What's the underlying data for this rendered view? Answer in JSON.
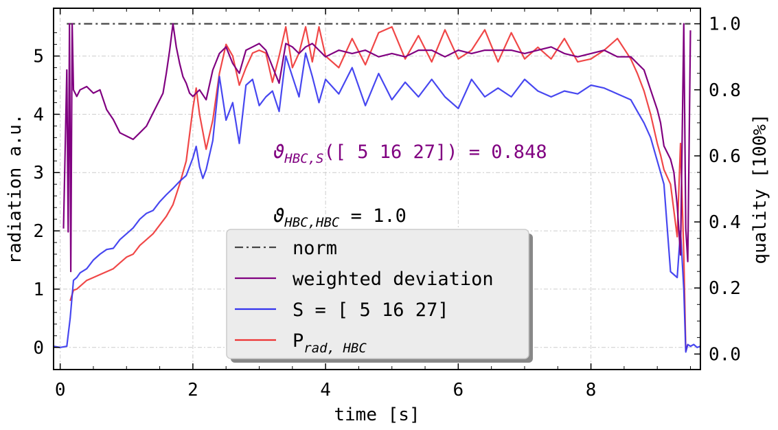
{
  "chart_data": {
    "type": "line",
    "xlabel": "time [s]",
    "ylabel": "radiation a.u.",
    "y2label": "quality [100%]",
    "xlim": [
      -0.1,
      9.65
    ],
    "ylim": [
      -0.38,
      5.82
    ],
    "y2lim": [
      -0.047,
      1.047
    ],
    "xticks": [
      "0",
      "2",
      "4",
      "6",
      "8"
    ],
    "yticks": [
      "0",
      "1",
      "2",
      "3",
      "4",
      "5"
    ],
    "y2ticks": [
      "0.0",
      "0.2",
      "0.4",
      "0.6",
      "0.8",
      "1.0"
    ],
    "grid": true,
    "legend_position": "bottom-center",
    "annotations": {
      "weighted": {
        "symbol": "ϑ",
        "sub": "HBC,S",
        "text": "([ 5 16 27]) = 0.848",
        "color": "#800080"
      },
      "norm": {
        "symbol": "ϑ",
        "sub": "HBC,HBC",
        "text": " = 1.0",
        "color": "#000000"
      }
    },
    "series": [
      {
        "name": "norm",
        "label_base": "norm",
        "label_sub": "",
        "color": "#444444",
        "dash": "12 5 3 5",
        "axis": "right",
        "x": [
          0.1,
          9.5
        ],
        "y": [
          1.0,
          1.0
        ]
      },
      {
        "name": "weighted deviation",
        "label_base": "weighted deviation",
        "label_sub": "",
        "color": "#800080",
        "axis": "right",
        "x": [
          0.05,
          0.1,
          0.12,
          0.14,
          0.16,
          0.18,
          0.2,
          0.25,
          0.3,
          0.4,
          0.5,
          0.6,
          0.7,
          0.8,
          0.9,
          1.0,
          1.1,
          1.2,
          1.3,
          1.4,
          1.5,
          1.55,
          1.6,
          1.65,
          1.7,
          1.75,
          1.8,
          1.85,
          1.9,
          1.95,
          2.0,
          2.1,
          2.2,
          2.3,
          2.4,
          2.5,
          2.6,
          2.7,
          2.8,
          2.9,
          3.0,
          3.1,
          3.2,
          3.3,
          3.4,
          3.5,
          3.6,
          3.7,
          3.8,
          3.9,
          4.0,
          4.2,
          4.4,
          4.6,
          4.8,
          5.0,
          5.2,
          5.4,
          5.6,
          5.8,
          6.0,
          6.2,
          6.4,
          6.6,
          6.8,
          7.0,
          7.2,
          7.4,
          7.6,
          7.8,
          8.0,
          8.2,
          8.4,
          8.6,
          8.7,
          8.8,
          8.9,
          9.0,
          9.05,
          9.1,
          9.15,
          9.2,
          9.25,
          9.3,
          9.35,
          9.4,
          9.43,
          9.46,
          9.5
        ],
        "y": [
          0.38,
          0.86,
          0.37,
          1.0,
          0.25,
          1.0,
          0.8,
          0.78,
          0.8,
          0.81,
          0.79,
          0.8,
          0.74,
          0.71,
          0.67,
          0.66,
          0.65,
          0.67,
          0.69,
          0.73,
          0.77,
          0.79,
          0.85,
          0.92,
          1.0,
          0.93,
          0.88,
          0.84,
          0.82,
          0.79,
          0.78,
          0.8,
          0.77,
          0.86,
          0.91,
          0.93,
          0.88,
          0.85,
          0.92,
          0.93,
          0.94,
          0.92,
          0.87,
          0.82,
          0.94,
          0.93,
          0.91,
          0.93,
          0.94,
          0.92,
          0.9,
          0.92,
          0.91,
          0.92,
          0.9,
          0.91,
          0.9,
          0.92,
          0.92,
          0.9,
          0.92,
          0.91,
          0.92,
          0.92,
          0.92,
          0.91,
          0.92,
          0.93,
          0.91,
          0.9,
          0.91,
          0.92,
          0.9,
          0.9,
          0.88,
          0.86,
          0.8,
          0.74,
          0.7,
          0.63,
          0.61,
          0.59,
          0.55,
          0.45,
          0.3,
          1.0,
          0.38,
          0.28,
          0.98
        ]
      },
      {
        "name": "S = [ 5 16 27]",
        "label_base": "S = [ 5 16 27]",
        "label_sub": "",
        "color": "#3333ee",
        "axis": "left",
        "x": [
          -0.1,
          0.0,
          0.1,
          0.15,
          0.2,
          0.25,
          0.3,
          0.4,
          0.5,
          0.6,
          0.7,
          0.8,
          0.9,
          1.0,
          1.1,
          1.2,
          1.3,
          1.4,
          1.5,
          1.6,
          1.7,
          1.8,
          1.9,
          2.0,
          2.05,
          2.1,
          2.15,
          2.2,
          2.3,
          2.4,
          2.5,
          2.6,
          2.7,
          2.8,
          2.9,
          3.0,
          3.1,
          3.2,
          3.3,
          3.4,
          3.5,
          3.6,
          3.7,
          3.8,
          3.9,
          4.0,
          4.2,
          4.4,
          4.6,
          4.8,
          5.0,
          5.2,
          5.4,
          5.6,
          5.8,
          6.0,
          6.2,
          6.4,
          6.6,
          6.8,
          7.0,
          7.2,
          7.4,
          7.6,
          7.8,
          8.0,
          8.2,
          8.4,
          8.6,
          8.7,
          8.8,
          8.9,
          9.0,
          9.1,
          9.2,
          9.3,
          9.35,
          9.4,
          9.43,
          9.46,
          9.5,
          9.55,
          9.6,
          9.65
        ],
        "y": [
          0.02,
          0.0,
          0.02,
          0.5,
          1.15,
          1.2,
          1.28,
          1.35,
          1.5,
          1.6,
          1.68,
          1.7,
          1.85,
          1.95,
          2.05,
          2.2,
          2.3,
          2.35,
          2.5,
          2.62,
          2.73,
          2.85,
          2.95,
          3.25,
          3.45,
          3.1,
          2.9,
          3.05,
          3.55,
          4.65,
          3.9,
          4.2,
          3.5,
          4.5,
          4.6,
          4.15,
          4.3,
          4.4,
          4.05,
          5.0,
          4.65,
          4.3,
          5.05,
          4.65,
          4.2,
          4.6,
          4.35,
          4.8,
          4.15,
          4.7,
          4.25,
          4.55,
          4.3,
          4.6,
          4.3,
          4.1,
          4.6,
          4.3,
          4.45,
          4.3,
          4.6,
          4.4,
          4.3,
          4.4,
          4.35,
          4.5,
          4.45,
          4.35,
          4.25,
          4.05,
          3.85,
          3.6,
          3.2,
          2.8,
          1.3,
          1.2,
          2.0,
          1.0,
          -0.08,
          0.05,
          0.02,
          0.05,
          0.0,
          0.02
        ]
      },
      {
        "name": "Prad,HBC",
        "label_base": "P",
        "label_sub": "rad, HBC",
        "color": "#ee3333",
        "axis": "left",
        "x": [
          0.15,
          0.2,
          0.25,
          0.3,
          0.4,
          0.5,
          0.6,
          0.7,
          0.8,
          0.9,
          1.0,
          1.1,
          1.2,
          1.3,
          1.4,
          1.5,
          1.6,
          1.7,
          1.8,
          1.9,
          2.0,
          2.05,
          2.1,
          2.2,
          2.3,
          2.4,
          2.5,
          2.6,
          2.7,
          2.8,
          2.9,
          3.0,
          3.1,
          3.2,
          3.3,
          3.4,
          3.5,
          3.6,
          3.7,
          3.8,
          3.9,
          4.0,
          4.2,
          4.4,
          4.6,
          4.8,
          5.0,
          5.2,
          5.4,
          5.6,
          5.8,
          6.0,
          6.2,
          6.4,
          6.6,
          6.8,
          7.0,
          7.2,
          7.4,
          7.6,
          7.8,
          8.0,
          8.2,
          8.4,
          8.6,
          8.7,
          8.8,
          8.9,
          9.0,
          9.05,
          9.1,
          9.2,
          9.3,
          9.35,
          9.4,
          9.43,
          9.46
        ],
        "y": [
          0.8,
          0.98,
          1.0,
          1.05,
          1.15,
          1.2,
          1.25,
          1.3,
          1.35,
          1.45,
          1.55,
          1.6,
          1.75,
          1.85,
          1.95,
          2.1,
          2.25,
          2.45,
          2.8,
          3.2,
          4.1,
          4.45,
          4.0,
          3.4,
          3.9,
          4.7,
          5.2,
          5.0,
          4.5,
          4.8,
          5.05,
          5.1,
          5.05,
          4.55,
          5.0,
          5.5,
          4.8,
          5.05,
          5.5,
          4.9,
          5.5,
          5.0,
          4.8,
          5.3,
          4.85,
          5.4,
          5.5,
          4.95,
          5.35,
          4.9,
          5.45,
          4.95,
          5.1,
          5.45,
          4.9,
          5.4,
          4.95,
          5.15,
          4.95,
          5.3,
          4.9,
          4.95,
          5.1,
          5.3,
          4.95,
          4.7,
          4.4,
          4.0,
          3.5,
          3.3,
          3.05,
          2.8,
          1.9,
          3.5,
          1.6,
          -0.05,
          0.05
        ]
      }
    ]
  }
}
